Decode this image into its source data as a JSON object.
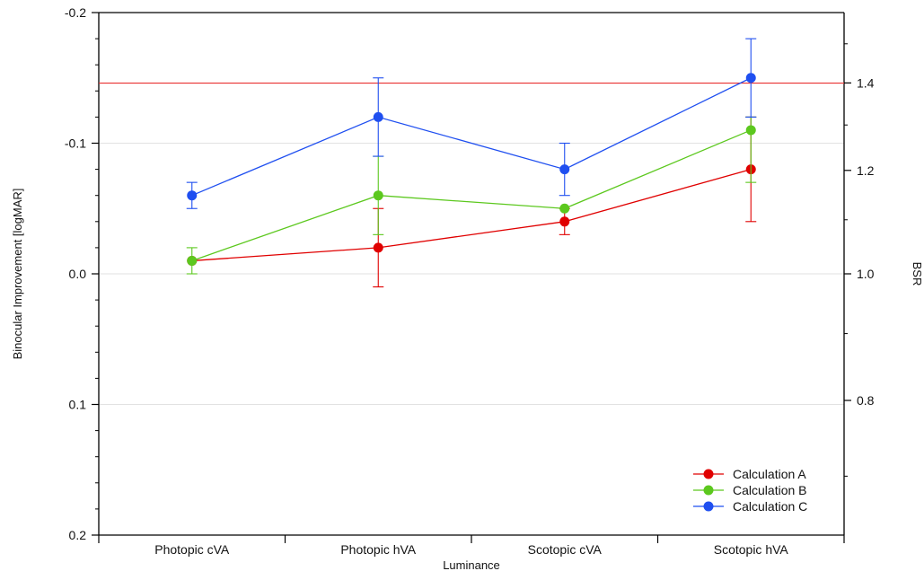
{
  "chart_data": {
    "type": "line",
    "title": "",
    "xlabel": "Luminance",
    "ylabel": "Binocular Improvement [logMAR]",
    "y2label": "BSR",
    "categories": [
      "Photopic cVA",
      "Photopic hVA",
      "Scotopic cVA",
      "Scotopic hVA"
    ],
    "ylim": [
      0.2,
      -0.2
    ],
    "y_ticks": [
      -0.2,
      -0.1,
      0.0,
      0.1,
      0.2
    ],
    "y_tick_labels": [
      "-0.2",
      "-0.1",
      "0.0",
      "0.1",
      "0.2"
    ],
    "y2_ticks": [
      1.4,
      1.2,
      1.0,
      0.8
    ],
    "y2_tick_labels": [
      "1.4",
      "1.2",
      "1.0",
      "0.8"
    ],
    "y2_scale": "log",
    "grid": "horizontal at major y ticks",
    "reference_line": {
      "y": -0.146,
      "color": "#e83030"
    },
    "legend": {
      "position": "bottom-right"
    },
    "series": [
      {
        "name": "Calculation A",
        "color": "#e00000",
        "values": [
          -0.01,
          -0.02,
          -0.04,
          -0.08
        ],
        "err_low": [
          0.0,
          0.01,
          -0.03,
          -0.04
        ],
        "err_high": [
          -0.02,
          -0.05,
          -0.05,
          -0.12
        ],
        "draw_errors": [
          false,
          true,
          true,
          true
        ]
      },
      {
        "name": "Calculation B",
        "color": "#5cc81e",
        "values": [
          -0.01,
          -0.06,
          -0.05,
          -0.11
        ],
        "err_low": [
          0.0,
          -0.03,
          -0.04,
          -0.07
        ],
        "err_high": [
          -0.02,
          -0.09,
          -0.06,
          -0.12
        ],
        "draw_errors": [
          true,
          true,
          false,
          true
        ]
      },
      {
        "name": "Calculation C",
        "color": "#1f4ff0",
        "values": [
          -0.06,
          -0.12,
          -0.08,
          -0.15
        ],
        "err_low": [
          -0.05,
          -0.09,
          -0.06,
          -0.12
        ],
        "err_high": [
          -0.07,
          -0.15,
          -0.1,
          -0.18
        ],
        "draw_errors": [
          true,
          true,
          true,
          true
        ]
      }
    ]
  }
}
